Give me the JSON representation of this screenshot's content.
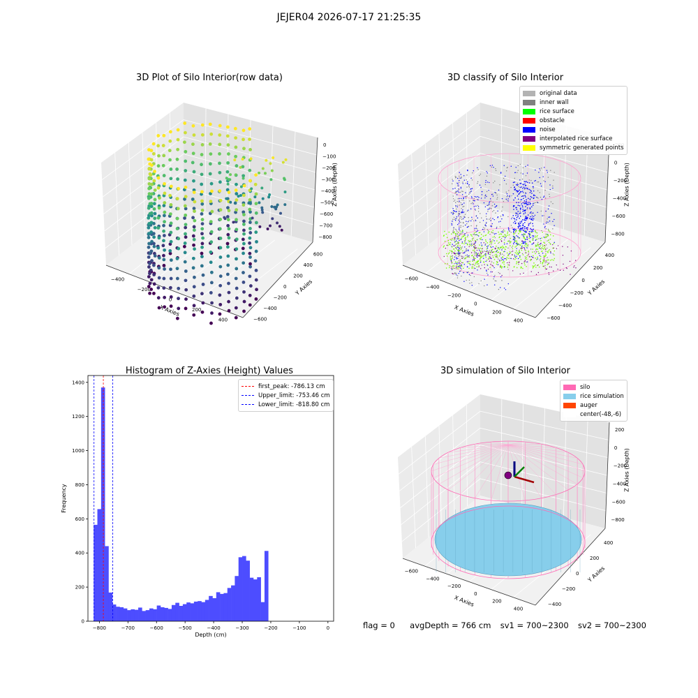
{
  "suptitle": "JEJER04 2026-07-17 21:25:35",
  "footer": {
    "flag": "flag = 0",
    "avg_depth": "avgDepth = 766 cm",
    "sv1": "sv1 = 700~2300",
    "sv2": "sv2 = 700~2300"
  },
  "chart_data": [
    {
      "type": "scatter",
      "projection": "3d",
      "title": "3D Plot of Silo Interior(row data)",
      "xlabel": "X Axies",
      "ylabel": "Y Axies",
      "zlabel": "Z Axies (Depth)",
      "x_ticks": [
        "−400",
        "−200",
        "0",
        "200",
        "400"
      ],
      "y_ticks": [
        "−600",
        "−400",
        "−200",
        "0",
        "200",
        "400",
        "600"
      ],
      "z_ticks": [
        "0",
        "−100",
        "−200",
        "−300",
        "−400",
        "−500",
        "−600",
        "−700",
        "−800"
      ],
      "colormap": "viridis",
      "grid": true
    },
    {
      "type": "scatter",
      "projection": "3d",
      "title": "3D classify of Silo Interior",
      "xlabel": "X Axies",
      "ylabel": "Y Axies",
      "zlabel": "Z Axies (Depth)",
      "x_ticks": [
        "−600",
        "−400",
        "−200",
        "0",
        "200",
        "400"
      ],
      "y_ticks": [
        "−600",
        "−400",
        "−200",
        "0",
        "200",
        "400"
      ],
      "z_ticks": [
        "200",
        "0",
        "−200",
        "−400",
        "−600",
        "−800"
      ],
      "legend": [
        {
          "label": "original data",
          "color": "#b3b3b3"
        },
        {
          "label": "inner wall",
          "color": "#808080"
        },
        {
          "label": "rice surface",
          "color": "#00ff00"
        },
        {
          "label": "obstacle",
          "color": "#ff0000"
        },
        {
          "label": "noise",
          "color": "#0000ff"
        },
        {
          "label": "interpolated rice surface",
          "color": "#800080"
        },
        {
          "label": "symmetric generated points",
          "color": "#ffff00"
        }
      ],
      "legend_loc": "top-right",
      "grid": true
    },
    {
      "type": "bar",
      "title": "Histogram of Z-Axies (Height) Values",
      "xlabel": "Depth (cm)",
      "ylabel": "Frequency",
      "xlim": [
        -840,
        20
      ],
      "ylim": [
        0,
        1440
      ],
      "x_ticks": [
        -800,
        -700,
        -600,
        -500,
        -400,
        -300,
        -200,
        -100,
        0
      ],
      "y_ticks": [
        0,
        200,
        400,
        600,
        800,
        1000,
        1200,
        1400
      ],
      "bar_color": "#4d4dff",
      "bins": [
        {
          "x0": -820,
          "x1": -807,
          "v": 565
        },
        {
          "x0": -807,
          "x1": -794,
          "v": 657
        },
        {
          "x0": -794,
          "x1": -781,
          "v": 1370
        },
        {
          "x0": -781,
          "x1": -768,
          "v": 440
        },
        {
          "x0": -768,
          "x1": -755,
          "v": 168
        },
        {
          "x0": -755,
          "x1": -742,
          "v": 98
        },
        {
          "x0": -742,
          "x1": -729,
          "v": 85
        },
        {
          "x0": -729,
          "x1": -716,
          "v": 82
        },
        {
          "x0": -716,
          "x1": -703,
          "v": 75
        },
        {
          "x0": -703,
          "x1": -690,
          "v": 65
        },
        {
          "x0": -690,
          "x1": -677,
          "v": 70
        },
        {
          "x0": -677,
          "x1": -664,
          "v": 67
        },
        {
          "x0": -664,
          "x1": -651,
          "v": 80
        },
        {
          "x0": -651,
          "x1": -638,
          "v": 60
        },
        {
          "x0": -638,
          "x1": -625,
          "v": 65
        },
        {
          "x0": -625,
          "x1": -612,
          "v": 75
        },
        {
          "x0": -612,
          "x1": -599,
          "v": 70
        },
        {
          "x0": -599,
          "x1": -586,
          "v": 92
        },
        {
          "x0": -586,
          "x1": -573,
          "v": 82
        },
        {
          "x0": -573,
          "x1": -560,
          "v": 78
        },
        {
          "x0": -560,
          "x1": -547,
          "v": 72
        },
        {
          "x0": -547,
          "x1": -534,
          "v": 95
        },
        {
          "x0": -534,
          "x1": -521,
          "v": 108
        },
        {
          "x0": -521,
          "x1": -508,
          "v": 90
        },
        {
          "x0": -508,
          "x1": -495,
          "v": 100
        },
        {
          "x0": -495,
          "x1": -482,
          "v": 110
        },
        {
          "x0": -482,
          "x1": -469,
          "v": 105
        },
        {
          "x0": -469,
          "x1": -456,
          "v": 115
        },
        {
          "x0": -456,
          "x1": -443,
          "v": 118
        },
        {
          "x0": -443,
          "x1": -430,
          "v": 112
        },
        {
          "x0": -430,
          "x1": -417,
          "v": 125
        },
        {
          "x0": -417,
          "x1": -404,
          "v": 148
        },
        {
          "x0": -404,
          "x1": -391,
          "v": 135
        },
        {
          "x0": -391,
          "x1": -378,
          "v": 170
        },
        {
          "x0": -378,
          "x1": -365,
          "v": 160
        },
        {
          "x0": -365,
          "x1": -352,
          "v": 165
        },
        {
          "x0": -352,
          "x1": -339,
          "v": 195
        },
        {
          "x0": -339,
          "x1": -326,
          "v": 210
        },
        {
          "x0": -326,
          "x1": -313,
          "v": 265
        },
        {
          "x0": -313,
          "x1": -300,
          "v": 375
        },
        {
          "x0": -300,
          "x1": -287,
          "v": 382
        },
        {
          "x0": -287,
          "x1": -274,
          "v": 355
        },
        {
          "x0": -274,
          "x1": -261,
          "v": 255
        },
        {
          "x0": -261,
          "x1": -248,
          "v": 245
        },
        {
          "x0": -248,
          "x1": -235,
          "v": 258
        },
        {
          "x0": -235,
          "x1": -222,
          "v": 112
        },
        {
          "x0": -222,
          "x1": -209,
          "v": 412
        }
      ],
      "lines": [
        {
          "label": "first_peak: -786.13 cm",
          "x": -786.13,
          "color": "#ff0000"
        },
        {
          "label": "Upper_limit: -753.46 cm",
          "x": -753.46,
          "color": "#0000ff"
        },
        {
          "label": "Lower_limit: -818.80 cm",
          "x": -818.8,
          "color": "#0000ff"
        }
      ],
      "legend_loc": "top-right",
      "grid": false
    },
    {
      "type": "scatter",
      "projection": "3d",
      "title": "3D simulation of Silo Interior",
      "xlabel": "X Axies",
      "ylabel": "Y Axies",
      "zlabel": "Z Axies (Depth)",
      "x_ticks": [
        "−600",
        "−400",
        "−200",
        "0",
        "200",
        "400"
      ],
      "y_ticks": [
        "−400",
        "−200",
        "0",
        "200",
        "400"
      ],
      "z_ticks": [
        "200",
        "0",
        "−200",
        "−400",
        "−600",
        "−800"
      ],
      "legend": [
        {
          "label": "silo",
          "color": "#ff69b4"
        },
        {
          "label": "rice simulation",
          "color": "#87ceeb"
        },
        {
          "label": "auger",
          "color": "#ff4500"
        },
        {
          "label": "center(-48,-6)",
          "color": "#ffffff"
        }
      ],
      "legend_loc": "top-right",
      "grid": true
    }
  ]
}
